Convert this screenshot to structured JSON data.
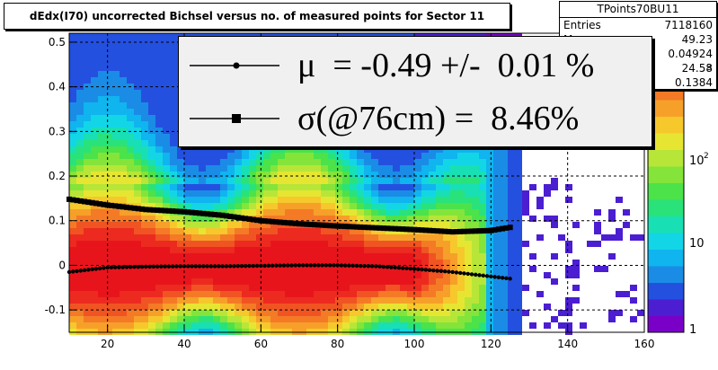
{
  "title": "dEdx(I70) uncorrected Bichsel versus no. of measured points for Sector 11",
  "stats": {
    "name": "TPoints70BU11",
    "rows": [
      {
        "label": "Entries",
        "value": "7118160"
      },
      {
        "label": "M",
        "value": "49.23"
      },
      {
        "label": "",
        "value": "0.04924"
      },
      {
        "label": "",
        "value": "24.58"
      },
      {
        "label": "",
        "value": "0.1384"
      }
    ]
  },
  "legend": {
    "mu_text": "μ  = -0.49 +/-  0.01 %",
    "sigma_text": "σ(@76cm) =  8.46%"
  },
  "palette_labels": [
    "10",
    "10",
    "1"
  ],
  "palette_exponent": "2",
  "stats_extra": "3",
  "chart_data": {
    "type": "heatmap",
    "title": "dEdx(I70) uncorrected Bichsel versus no. of measured points for Sector 11",
    "x_ticks": [
      "20",
      "40",
      "60",
      "80",
      "100",
      "120",
      "140",
      "160"
    ],
    "y_ticks": [
      "-0.1",
      "0",
      "0.1",
      "0.2",
      "0.3",
      "0.4",
      "0.5"
    ],
    "xlim": [
      10,
      160
    ],
    "ylim": [
      -0.15,
      0.52
    ],
    "grid": true,
    "z_scale": "log",
    "series": [
      {
        "name": "mu",
        "x": [
          10,
          20,
          30,
          40,
          50,
          60,
          70,
          80,
          90,
          100,
          110,
          120,
          125
        ],
        "values": [
          -0.015,
          -0.005,
          -0.003,
          -0.002,
          -0.002,
          -0.001,
          0.0,
          0.0,
          -0.002,
          -0.008,
          -0.015,
          -0.025,
          -0.03
        ]
      },
      {
        "name": "sigma",
        "x": [
          10,
          20,
          30,
          40,
          50,
          60,
          70,
          80,
          90,
          100,
          110,
          120,
          125
        ],
        "values": [
          0.148,
          0.135,
          0.125,
          0.12,
          0.112,
          0.1,
          0.093,
          0.088,
          0.084,
          0.08,
          0.075,
          0.078,
          0.085
        ]
      }
    ]
  }
}
